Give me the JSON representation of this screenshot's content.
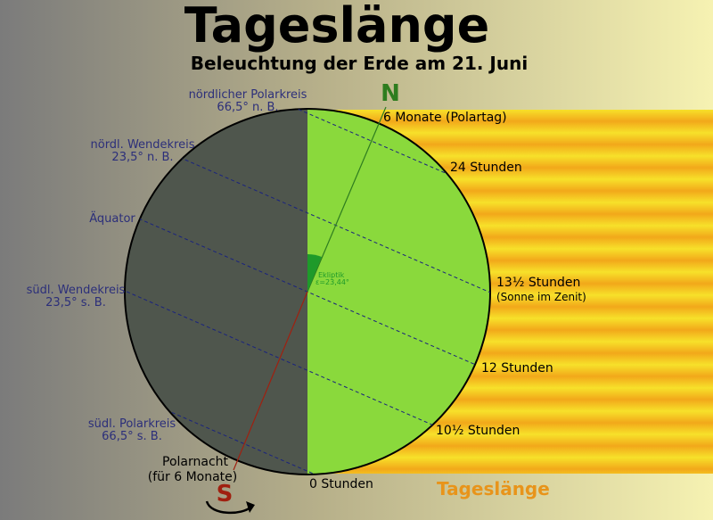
{
  "title": "Tageslänge",
  "subtitle": "Beleuchtung der Erde am 21. Juni",
  "poles": {
    "north": "N",
    "south": "S"
  },
  "left_labels": {
    "arctic": [
      "nördlicher Polarkreis",
      "66,5° n. B."
    ],
    "tropic_n": [
      "nördl. Wendekreis",
      "23,5° n. B."
    ],
    "equator": "Äquator",
    "tropic_s": [
      "südl. Wendekreis",
      "23,5° s. B."
    ],
    "antarctic": [
      "südl. Polarkreis",
      "66,5° s. B."
    ],
    "polar_night": [
      "Polarnacht",
      "(für 6 Monate)"
    ]
  },
  "right_labels": {
    "polar_day": "6 Monate (Polartag)",
    "h24": "24 Stunden",
    "h13": "13½ Stunden",
    "zenith": "(Sonne im Zenit)",
    "h12": "12 Stunden",
    "h10": "10½ Stunden",
    "h0": "0 Stunden"
  },
  "ecliptic": [
    "Ekliptik",
    "ε=23,44°"
  ],
  "legend": "Tageslänge",
  "colors": {
    "night": "#4f564d",
    "day": "#8ad93c",
    "sun_band_a": "#f2c61a",
    "sun_band_b": "#f7e12a",
    "axis_north": "#2e7d1f",
    "axis_south": "#a02010",
    "latitude_lines": "#1a237e",
    "left_text": "#2c2f7a",
    "legend_text": "#e8941a"
  }
}
